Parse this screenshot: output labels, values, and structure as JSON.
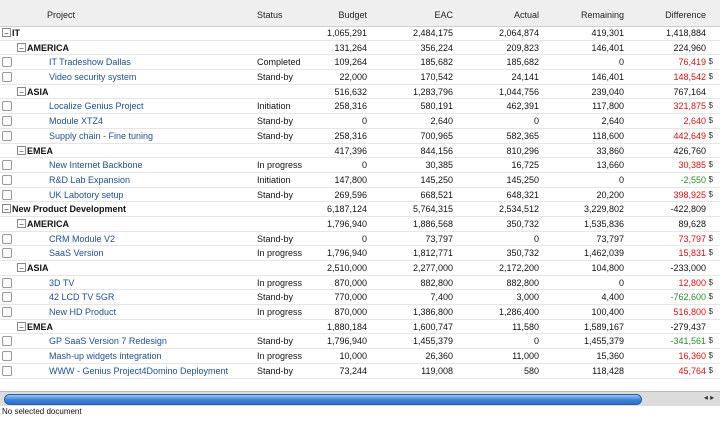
{
  "header": {
    "project": "Project",
    "status": "Status",
    "budget": "Budget",
    "eac": "EAC",
    "actual": "Actual",
    "remaining": "Remaining",
    "difference": "Difference"
  },
  "rows": [
    {
      "kind": "group0",
      "name": "IT",
      "budget": "1,065,291",
      "eac": "2,484,175",
      "actual": "2,064,874",
      "remaining": "419,301",
      "difference": "1,418,884"
    },
    {
      "kind": "group1",
      "name": "AMERICA",
      "budget": "131,264",
      "eac": "356,224",
      "actual": "209,823",
      "remaining": "146,401",
      "difference": "224,960"
    },
    {
      "kind": "leaf",
      "name": "IT Tradeshow Dallas",
      "status": "Completed",
      "budget": "109,264",
      "eac": "185,682",
      "actual": "185,682",
      "remaining": "0",
      "difference": "76,419",
      "diff_color": "neg",
      "currency": "$"
    },
    {
      "kind": "leaf",
      "name": "Video security system",
      "status": "Stand-by",
      "budget": "22,000",
      "eac": "170,542",
      "actual": "24,141",
      "remaining": "146,401",
      "difference": "148,542",
      "diff_color": "neg",
      "currency": "$"
    },
    {
      "kind": "group1",
      "name": "ASIA",
      "budget": "516,632",
      "eac": "1,283,796",
      "actual": "1,044,756",
      "remaining": "239,040",
      "difference": "767,164"
    },
    {
      "kind": "leaf",
      "name": "Localize Genius Project",
      "status": "Initiation",
      "budget": "258,316",
      "eac": "580,191",
      "actual": "462,391",
      "remaining": "117,800",
      "difference": "321,875",
      "diff_color": "neg",
      "currency": "$"
    },
    {
      "kind": "leaf",
      "name": "Module XTZ4",
      "status": "Stand-by",
      "budget": "0",
      "eac": "2,640",
      "actual": "0",
      "remaining": "2,640",
      "difference": "2,640",
      "diff_color": "neg",
      "currency": "$"
    },
    {
      "kind": "leaf",
      "name": "Supply chain - Fine tuning",
      "status": "Stand-by",
      "budget": "258,316",
      "eac": "700,965",
      "actual": "582,365",
      "remaining": "118,600",
      "difference": "442,649",
      "diff_color": "neg",
      "currency": "$"
    },
    {
      "kind": "group1",
      "name": "EMEA",
      "budget": "417,396",
      "eac": "844,156",
      "actual": "810,296",
      "remaining": "33,860",
      "difference": "426,760"
    },
    {
      "kind": "leaf",
      "name": "New Internet Backbone",
      "status": "In progress",
      "budget": "0",
      "eac": "30,385",
      "actual": "16,725",
      "remaining": "13,660",
      "difference": "30,385",
      "diff_color": "neg",
      "currency": "$"
    },
    {
      "kind": "leaf",
      "name": "R&D Lab Expansion",
      "status": "Initiation",
      "budget": "147,800",
      "eac": "145,250",
      "actual": "145,250",
      "remaining": "0",
      "difference": "-2,550",
      "diff_color": "grn",
      "currency": "$"
    },
    {
      "kind": "leaf",
      "name": "UK Labotory setup",
      "status": "Stand-by",
      "budget": "269,596",
      "eac": "668,521",
      "actual": "648,321",
      "remaining": "20,200",
      "difference": "398,925",
      "diff_color": "neg",
      "currency": "$"
    },
    {
      "kind": "group0",
      "name": "New Product Development",
      "budget": "6,187,124",
      "eac": "5,764,315",
      "actual": "2,534,512",
      "remaining": "3,229,802",
      "difference": "-422,809"
    },
    {
      "kind": "group1",
      "name": "AMERICA",
      "budget": "1,796,940",
      "eac": "1,886,568",
      "actual": "350,732",
      "remaining": "1,535,836",
      "difference": "89,628"
    },
    {
      "kind": "leaf",
      "name": "CRM Module V2",
      "status": "Stand-by",
      "budget": "0",
      "eac": "73,797",
      "actual": "0",
      "remaining": "73,797",
      "difference": "73,797",
      "diff_color": "neg",
      "currency": "$"
    },
    {
      "kind": "leaf",
      "name": "SaaS Version",
      "status": "In progress",
      "budget": "1,796,940",
      "eac": "1,812,771",
      "actual": "350,732",
      "remaining": "1,462,039",
      "difference": "15,831",
      "diff_color": "neg",
      "currency": "$"
    },
    {
      "kind": "group1",
      "name": "ASIA",
      "budget": "2,510,000",
      "eac": "2,277,000",
      "actual": "2,172,200",
      "remaining": "104,800",
      "difference": "-233,000"
    },
    {
      "kind": "leaf",
      "name": "3D TV",
      "status": "In progress",
      "budget": "870,000",
      "eac": "882,800",
      "actual": "882,800",
      "remaining": "0",
      "difference": "12,800",
      "diff_color": "neg",
      "currency": "$"
    },
    {
      "kind": "leaf",
      "name": "42 LCD TV 5GR",
      "status": "Stand-by",
      "budget": "770,000",
      "eac": "7,400",
      "actual": "3,000",
      "remaining": "4,400",
      "difference": "-762,600",
      "diff_color": "grn",
      "currency": "$"
    },
    {
      "kind": "leaf",
      "name": "New HD Product",
      "status": "In progress",
      "budget": "870,000",
      "eac": "1,386,800",
      "actual": "1,286,400",
      "remaining": "100,400",
      "difference": "516,800",
      "diff_color": "neg",
      "currency": "$"
    },
    {
      "kind": "group1",
      "name": "EMEA",
      "budget": "1,880,184",
      "eac": "1,600,747",
      "actual": "11,580",
      "remaining": "1,589,167",
      "difference": "-279,437"
    },
    {
      "kind": "leaf",
      "name": "GP SaaS Version 7 Redesign",
      "status": "Stand-by",
      "budget": "1,796,940",
      "eac": "1,455,379",
      "actual": "0",
      "remaining": "1,455,379",
      "difference": "-341,561",
      "diff_color": "grn",
      "currency": "$"
    },
    {
      "kind": "leaf",
      "name": "Mash-up widgets integration",
      "status": "In progress",
      "budget": "10,000",
      "eac": "26,360",
      "actual": "11,000",
      "remaining": "15,360",
      "difference": "16,360",
      "diff_color": "neg",
      "currency": "$"
    },
    {
      "kind": "leaf",
      "name": "WWW - Genius Project4Domino Deployment",
      "status": "Stand-by",
      "budget": "73,244",
      "eac": "119,008",
      "actual": "580",
      "remaining": "118,428",
      "difference": "45,764",
      "diff_color": "neg",
      "currency": "$"
    }
  ],
  "status_bar": "No selected document",
  "scroll": {
    "left_arrow": "◂",
    "right_arrow": "▸"
  }
}
